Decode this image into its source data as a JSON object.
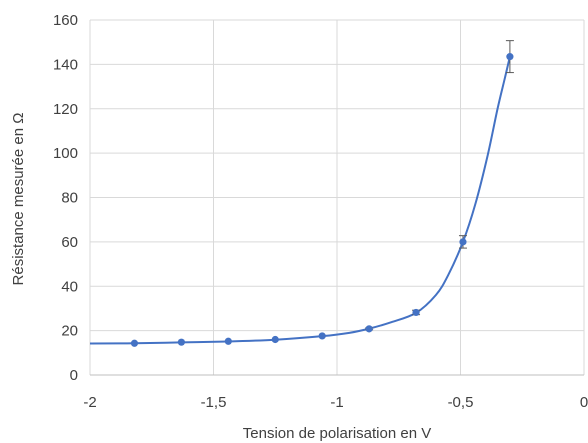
{
  "chart_data": {
    "type": "scatter",
    "title": "",
    "xlabel": "Tension de polarisation en V",
    "ylabel": "Résistance mesurée en Ω",
    "xlim": [
      -2,
      0
    ],
    "ylim": [
      0,
      160
    ],
    "x_ticks": [
      -2,
      -1.5,
      -1,
      -0.5,
      0
    ],
    "x_tick_labels": [
      "-2",
      "-1,5",
      "-1",
      "-0,5",
      "0"
    ],
    "y_ticks": [
      0,
      20,
      40,
      60,
      80,
      100,
      120,
      140,
      160
    ],
    "y_tick_labels": [
      "0",
      "20",
      "40",
      "60",
      "80",
      "100",
      "120",
      "140",
      "160"
    ],
    "grid": true,
    "legend": "none",
    "color": "#4472C4",
    "error_bar_color": "#595959",
    "series": [
      {
        "points": [
          {
            "x": -1.82,
            "y": 14.3,
            "err": 0
          },
          {
            "x": -1.63,
            "y": 14.8,
            "err": 0
          },
          {
            "x": -1.44,
            "y": 15.2,
            "err": 0
          },
          {
            "x": -1.25,
            "y": 16.0,
            "err": 0
          },
          {
            "x": -1.06,
            "y": 17.6,
            "err": 0
          },
          {
            "x": -0.87,
            "y": 20.8,
            "err": 0.4
          },
          {
            "x": -0.68,
            "y": 28.2,
            "err": 1.0
          },
          {
            "x": -0.49,
            "y": 60.0,
            "err": 2.8
          },
          {
            "x": -0.3,
            "y": 143.5,
            "err": 7.2
          }
        ]
      }
    ],
    "trendline": {
      "x": [
        -2.0,
        -1.82,
        -1.63,
        -1.44,
        -1.25,
        -1.06,
        -0.95,
        -0.87,
        -0.78,
        -0.68,
        -0.6,
        -0.55,
        -0.49,
        -0.44,
        -0.39,
        -0.35,
        -0.32,
        -0.3
      ],
      "y": [
        14.2,
        14.3,
        14.7,
        15.1,
        15.9,
        17.5,
        19.0,
        20.9,
        23.8,
        28.0,
        36.0,
        45.0,
        60.0,
        77.0,
        99.0,
        120.0,
        134.0,
        143.5
      ]
    }
  }
}
